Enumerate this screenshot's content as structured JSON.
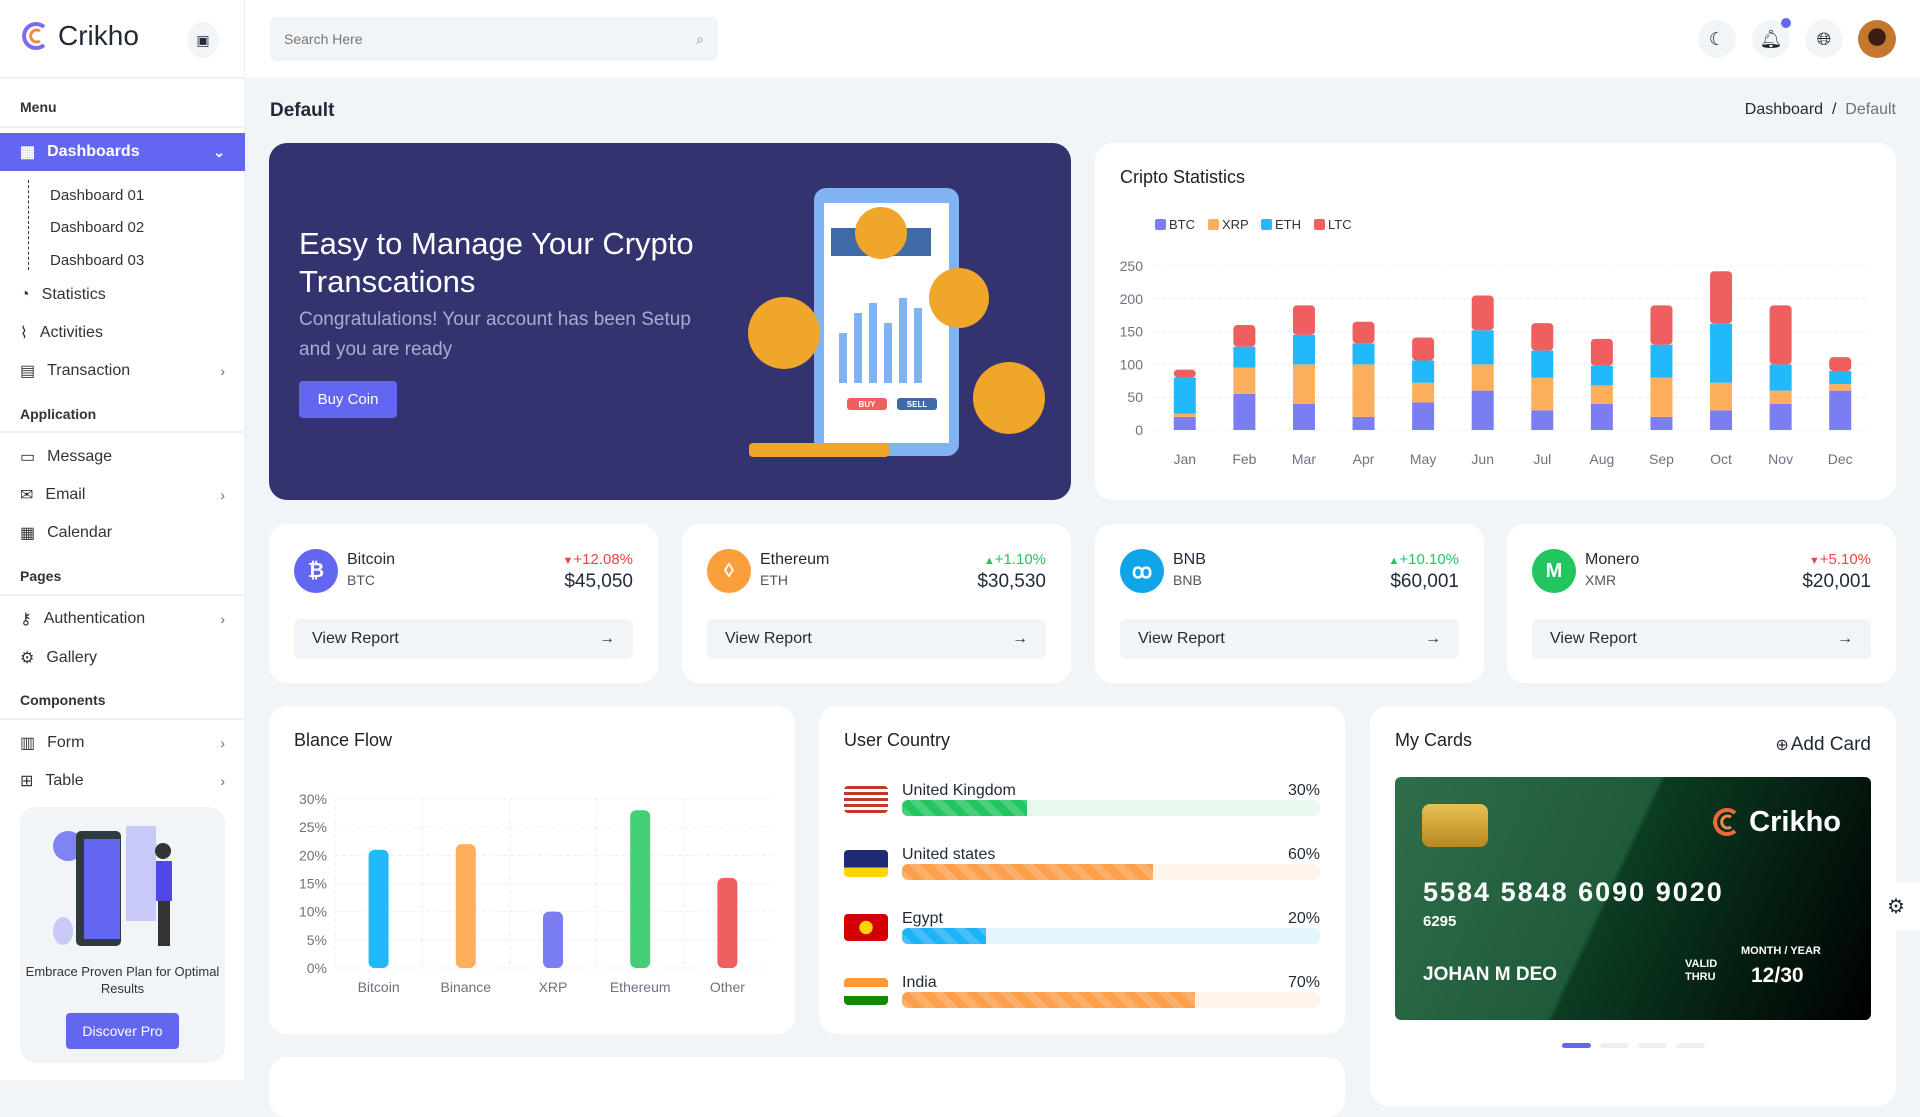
{
  "brand": {
    "name": "Crikho"
  },
  "search": {
    "placeholder": "Search Here"
  },
  "sidebar": {
    "sections": [
      "Menu",
      "Application",
      "Pages",
      "Components"
    ],
    "dashboards": {
      "label": "Dashboards",
      "children": [
        "Dashboard 01",
        "Dashboard 02",
        "Dashboard 03"
      ]
    },
    "menu_items": [
      {
        "label": "Statistics",
        "icon": "pie-chart-icon"
      },
      {
        "label": "Activities",
        "icon": "activity-icon"
      },
      {
        "label": "Transaction",
        "icon": "receipt-icon",
        "has_children": true
      }
    ],
    "application_items": [
      {
        "label": "Message",
        "icon": "message-icon"
      },
      {
        "label": "Email",
        "icon": "mail-icon",
        "has_children": true
      },
      {
        "label": "Calendar",
        "icon": "calendar-icon"
      }
    ],
    "pages_items": [
      {
        "label": "Authentication",
        "icon": "key-icon",
        "has_children": true
      },
      {
        "label": "Gallery",
        "icon": "gear-icon"
      }
    ],
    "components_items": [
      {
        "label": "Form",
        "icon": "form-icon",
        "has_children": true
      },
      {
        "label": "Table",
        "icon": "table-icon",
        "has_children": true
      }
    ],
    "promo": {
      "text": "Embrace Proven Plan for Optimal Results",
      "button": "Discover Pro"
    }
  },
  "page": {
    "title": "Default",
    "breadcrumb": [
      "Dashboard",
      "Default"
    ]
  },
  "banner": {
    "title": "Easy to Manage Your Crypto Transcations",
    "subtitle": "Congratulations! Your account has been Setup and you are ready",
    "button": "Buy Coin",
    "illustration_labels": [
      "BUY",
      "SELL"
    ]
  },
  "coins": [
    {
      "name": "Bitcoin",
      "symbol": "BTC",
      "change": "+12.08%",
      "trend": "down",
      "price": "$45,050",
      "color": "#6366f1",
      "glyph": "₿",
      "report": "View Report"
    },
    {
      "name": "Ethereum",
      "symbol": "ETH",
      "change": "+1.10%",
      "trend": "up",
      "price": "$30,530",
      "color": "#fb9f3c",
      "glyph": "◊",
      "report": "View Report"
    },
    {
      "name": "BNB",
      "symbol": "BNB",
      "change": "+10.10%",
      "trend": "up",
      "price": "$60,001",
      "color": "#0ea5e9",
      "glyph": "ꝏ",
      "report": "View Report"
    },
    {
      "name": "Monero",
      "symbol": "XMR",
      "change": "+5.10%",
      "trend": "down",
      "price": "$20,001",
      "color": "#22c55e",
      "glyph": "M",
      "report": "View Report"
    }
  ],
  "chart_data": [
    {
      "type": "bar",
      "stacked": true,
      "title": "Cripto Statistics",
      "legend": "top-left",
      "grid": true,
      "categories": [
        "Jan",
        "Feb",
        "Mar",
        "Apr",
        "May",
        "Jun",
        "Jul",
        "Aug",
        "Sep",
        "Oct",
        "Nov",
        "Dec"
      ],
      "ylim": [
        0,
        250
      ],
      "yticks": [
        0,
        50,
        100,
        150,
        200,
        250
      ],
      "series": [
        {
          "name": "BTC",
          "color": "#7b7ef2",
          "values": [
            20,
            55,
            40,
            20,
            42,
            60,
            30,
            40,
            20,
            30,
            40,
            60
          ]
        },
        {
          "name": "XRP",
          "color": "#fdae5c",
          "values": [
            5,
            40,
            60,
            80,
            30,
            40,
            50,
            28,
            60,
            42,
            20,
            10
          ]
        },
        {
          "name": "ETH",
          "color": "#22b9fb",
          "values": [
            55,
            32,
            45,
            32,
            34,
            52,
            41,
            30,
            50,
            90,
            40,
            20
          ]
        },
        {
          "name": "LTC",
          "color": "#f05f5f",
          "values": [
            12,
            33,
            45,
            33,
            35,
            53,
            42,
            41,
            60,
            80,
            90,
            21
          ]
        }
      ]
    },
    {
      "type": "bar",
      "title": "Blance Flow",
      "grid": true,
      "categories": [
        "Bitcoin",
        "Binance",
        "XRP",
        "Ethereum",
        "Other"
      ],
      "values": [
        21,
        22,
        10,
        28,
        16
      ],
      "colors": [
        "#22b9fb",
        "#fdae5c",
        "#7b7ef2",
        "#44cf77",
        "#f05f5f"
      ],
      "ylim": [
        0,
        30
      ],
      "yticks": [
        "0%",
        "5%",
        "10%",
        "15%",
        "20%",
        "25%",
        "30%"
      ]
    }
  ],
  "user_country": {
    "title": "User Country",
    "rows": [
      {
        "country": "United Kingdom",
        "percent": 30,
        "label": "30%",
        "color": "#22c55e",
        "track": "#e8f8ee",
        "flag": "us"
      },
      {
        "country": "United states",
        "percent": 60,
        "label": "60%",
        "color": "#fb9f4a",
        "track": "#fff5ec",
        "flag": "uk"
      },
      {
        "country": "Egypt",
        "percent": 20,
        "label": "20%",
        "color": "#1eb2f8",
        "track": "#e3f6fe",
        "flag": "mk"
      },
      {
        "country": "India",
        "percent": 70,
        "label": "70%",
        "color": "#fb9f4a",
        "track": "#fff5ec",
        "flag": "in"
      }
    ]
  },
  "my_cards": {
    "title": "My Cards",
    "add": "Add Card",
    "card": {
      "brand": "Crikho",
      "number": "5584 5848 6090 9020",
      "sub": "6295",
      "holder": "JOHAN M DEO",
      "valid": "VALID THRU",
      "exp_label": "MONTH / YEAR",
      "exp": "12/30"
    },
    "slides": 4,
    "active_slide": 0
  },
  "colors": {
    "accent": "#6366f1",
    "banner": "#33336f",
    "up": "#22c55e",
    "down": "#ef4444"
  }
}
